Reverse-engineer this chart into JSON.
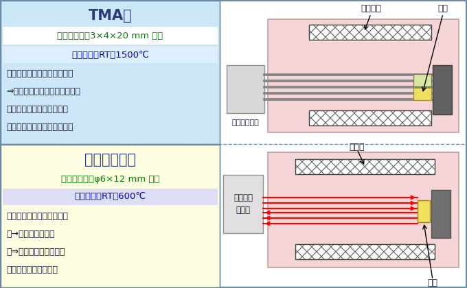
{
  "top_left_bg": "#cce8f8",
  "top_left_title": "TMA法",
  "top_left_title_color": "#2a3b7d",
  "sample_size_top": "試料サイズ：3×4×20 mm 程度",
  "sample_size_top_color": "#008000",
  "measurement_range_top": "測定範囲：RT～1500℃",
  "measurement_range_top_color": "#0000cc",
  "top_left_bullets": [
    "・参照試料との膨張差を計測",
    "⇒熱膨張既知の参照試料が必要",
    "・比較的高温まで測定可能",
    "・各種雰囲気下での測定可能"
  ],
  "top_left_bullet_color": "#1a1a3a",
  "bottom_left_bg": "#fdfde0",
  "bottom_left_title": "レーザ干渉法",
  "bottom_left_title_color": "#2a3b7d",
  "sample_size_bottom": "試料サイズ：φ6×12 mm 程度",
  "sample_size_bottom_color": "#008000",
  "measurement_range_bottom": "測定範囲：RT～600℃",
  "measurement_range_bottom_color": "#0000cc",
  "bottom_left_bullets": [
    "・試料の絶対変化量を計測",
    "　→標準物質が不要",
    "　⇒高精度な測定が可能",
    "・雰囲気は減圧中のみ"
  ],
  "bottom_left_bullet_color": "#1a1a3a",
  "furnace_bg": "#f5d5d5",
  "furnace_border": "#c0a0a0",
  "holder_bg": "#d8d8d8",
  "holder_border": "#909090",
  "rod_color": "#888888",
  "block_color": "#606060",
  "hatch_color": "#606060",
  "sample_green": "#d8e8a0",
  "sample_yellow": "#f0e060",
  "outer_border_color": "#6a8aaa",
  "divider_color": "#6a8aaa",
  "measurement_bg_top": "#ddeeff",
  "measurement_bg_bottom": "#ddddf5",
  "label_sansha": "参照試料",
  "label_shiryo_top": "試料",
  "label_trans": "作動トランス",
  "label_mirror": "反射鏡",
  "label_laser": "レーザー\n干渉計",
  "label_shiryo_bot": "試料"
}
